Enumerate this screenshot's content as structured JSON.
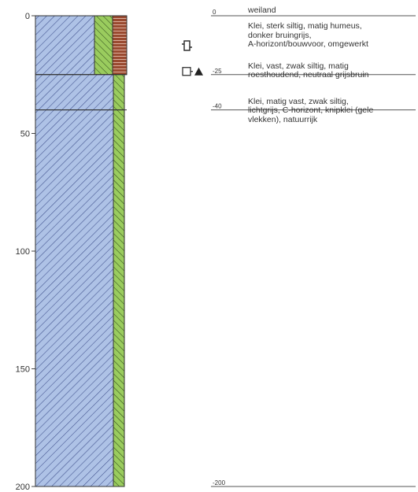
{
  "axis": {
    "ticks": [
      "0",
      "50",
      "100",
      "150",
      "200"
    ]
  },
  "land_use": "weiland",
  "layers": [
    {
      "top": 0,
      "bottom": 25,
      "top_label": "0",
      "description": "Klei, sterk siltig, matig humeus,\ndonker bruingrijs,\nA-horizont/bouwvoor, omgewerkt",
      "symbols": [
        "sample-bag-icon"
      ],
      "columns": [
        "clay",
        "silt",
        "humus"
      ]
    },
    {
      "top": 25,
      "bottom": 40,
      "top_label": "-25",
      "description": "Klei, vast, zwak siltig, matig\nroesthoudend, neutraal grijsbruin",
      "symbols": [
        "open-square-icon",
        "filled-triangle-icon"
      ],
      "columns": [
        "clay",
        "silt"
      ]
    },
    {
      "top": 40,
      "bottom": 200,
      "top_label": "-40",
      "description": "Klei, matig vast, zwak siltig,\nlichtgrijs, C-horizont, knipklei (gele\nvlekken), natuurrijk",
      "symbols": [],
      "columns": [
        "clay",
        "silt"
      ]
    }
  ],
  "end_depth_label": "-200",
  "colors": {
    "clay_fill": "#aec2e6",
    "clay_hatch": "#3e4f8c",
    "silt_fill": "#9acc5e",
    "silt_hatch": "#2f4a1c",
    "humus_fill": "#9a4a30",
    "humus_line": "#f2d0c0"
  }
}
